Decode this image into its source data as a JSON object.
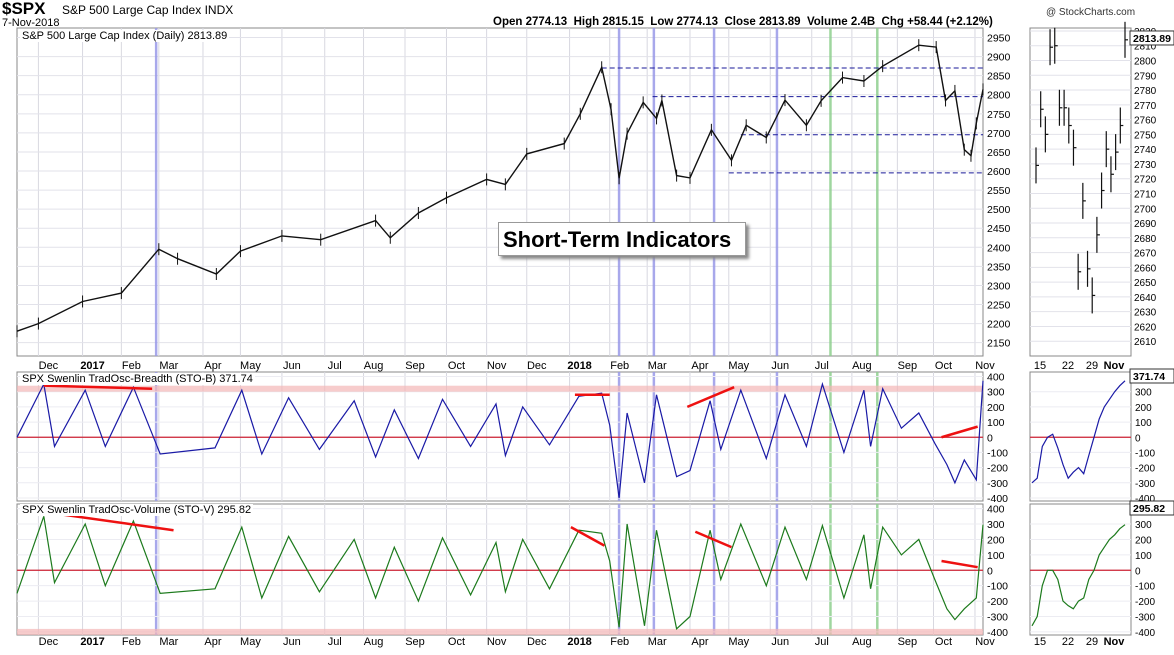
{
  "header": {
    "symbol": "$SPX",
    "name": "S&P 500 Large Cap Index",
    "exchange": "INDX",
    "date": "7-Nov-2018",
    "open_label": "Open",
    "open": "2774.13",
    "high_label": "High",
    "high": "2815.15",
    "low_label": "Low",
    "low": "2774.13",
    "close_label": "Close",
    "close": "2813.89",
    "volume_label": "Volume",
    "volume": "2.4B",
    "chg_label": "Chg",
    "chg": "+58.44 (+2.12%)",
    "copyright": "@ StockCharts.com"
  },
  "callout": "Short-Term Indicators",
  "chart_data": [
    {
      "type": "line",
      "panel": "price",
      "title": "S&P 500 Large Cap Index (Daily) 2813.89",
      "last_value_label": "2813.89",
      "y_ticks": [
        2150,
        2200,
        2250,
        2300,
        2350,
        2400,
        2450,
        2500,
        2550,
        2600,
        2650,
        2700,
        2750,
        2800,
        2850,
        2900,
        2950
      ],
      "ylim": [
        2115,
        2975
      ],
      "x_month_labels": [
        "Dec",
        "2017",
        "Feb",
        "Mar",
        "Apr",
        "May",
        "Jun",
        "Jul",
        "Aug",
        "Sep",
        "Oct",
        "Nov",
        "Dec",
        "2018",
        "Feb",
        "Mar",
        "Apr",
        "May",
        "Jun",
        "Jul",
        "Aug",
        "Sep",
        "Oct",
        "Nov"
      ],
      "x": [
        "2016-11-15",
        "2016-12-01",
        "2017-01-03",
        "2017-02-01",
        "2017-03-01",
        "2017-03-15",
        "2017-04-13",
        "2017-05-01",
        "2017-06-01",
        "2017-06-30",
        "2017-08-10",
        "2017-08-21",
        "2017-09-11",
        "2017-10-02",
        "2017-11-01",
        "2017-11-15",
        "2017-12-01",
        "2017-12-29",
        "2018-01-10",
        "2018-01-26",
        "2018-02-02",
        "2018-02-08",
        "2018-02-14",
        "2018-02-26",
        "2018-03-08",
        "2018-03-12",
        "2018-03-23",
        "2018-04-02",
        "2018-04-18",
        "2018-05-03",
        "2018-05-14",
        "2018-05-29",
        "2018-06-12",
        "2018-06-28",
        "2018-07-09",
        "2018-07-25",
        "2018-08-10",
        "2018-08-24",
        "2018-09-20",
        "2018-10-03",
        "2018-10-10",
        "2018-10-17",
        "2018-10-24",
        "2018-10-29",
        "2018-11-02",
        "2018-11-07"
      ],
      "values": [
        2180,
        2200,
        2258,
        2280,
        2395,
        2370,
        2330,
        2390,
        2430,
        2420,
        2470,
        2425,
        2490,
        2530,
        2578,
        2565,
        2645,
        2672,
        2750,
        2872,
        2762,
        2581,
        2698,
        2780,
        2738,
        2785,
        2588,
        2582,
        2708,
        2628,
        2720,
        2688,
        2786,
        2720,
        2784,
        2845,
        2836,
        2875,
        2930,
        2925,
        2785,
        2810,
        2656,
        2640,
        2725,
        2814
      ],
      "horizontal_levels": [
        {
          "value": 2870,
          "style": "dashed"
        },
        {
          "value": 2795,
          "style": "dashed"
        },
        {
          "value": 2695,
          "style": "dashed"
        },
        {
          "value": 2595,
          "style": "dashed"
        }
      ],
      "vertical_markers": [
        {
          "date": "2017-02-27",
          "color": "#9a9ae8"
        },
        {
          "date": "2018-02-08",
          "color": "#9a9ae8"
        },
        {
          "date": "2018-03-06",
          "color": "#9a9ae8"
        },
        {
          "date": "2018-04-20",
          "color": "#9a9ae8"
        },
        {
          "date": "2018-06-06",
          "color": "#9a9ae8"
        },
        {
          "date": "2018-07-16",
          "color": "#8fd08f"
        },
        {
          "date": "2018-08-20",
          "color": "#8fd08f"
        }
      ]
    },
    {
      "type": "line",
      "panel": "stob",
      "title": "SPX Swenlin TradOsc-Breadth (STO-B) 371.74",
      "last_value_label": "371.74",
      "color": "#1a1aa6",
      "ylim": [
        -420,
        430
      ],
      "y_ticks": [
        -400,
        -300,
        -200,
        -100,
        0,
        100,
        200,
        300,
        400
      ],
      "zero_line_color": "#cc2233",
      "overbought_band": 320,
      "x": [
        "2016-11-15",
        "2016-12-05",
        "2016-12-13",
        "2017-01-05",
        "2017-01-20",
        "2017-02-10",
        "2017-03-02",
        "2017-04-12",
        "2017-05-02",
        "2017-05-17",
        "2017-06-06",
        "2017-06-29",
        "2017-07-25",
        "2017-08-10",
        "2017-08-24",
        "2017-09-11",
        "2017-09-29",
        "2017-10-20",
        "2017-11-08",
        "2017-11-15",
        "2017-11-28",
        "2017-12-18",
        "2018-01-09",
        "2018-01-26",
        "2018-02-01",
        "2018-02-08",
        "2018-02-14",
        "2018-02-27",
        "2018-03-08",
        "2018-03-23",
        "2018-04-02",
        "2018-04-17",
        "2018-04-25",
        "2018-05-10",
        "2018-05-29",
        "2018-06-12",
        "2018-06-28",
        "2018-07-10",
        "2018-07-26",
        "2018-08-10",
        "2018-08-15",
        "2018-08-24",
        "2018-09-07",
        "2018-09-20",
        "2018-10-02",
        "2018-10-11",
        "2018-10-17",
        "2018-10-24",
        "2018-11-02",
        "2018-11-07"
      ],
      "values": [
        0,
        350,
        -60,
        310,
        -60,
        330,
        -110,
        -70,
        310,
        -110,
        260,
        -80,
        240,
        -130,
        180,
        -140,
        250,
        -60,
        220,
        -120,
        200,
        -50,
        270,
        290,
        80,
        -400,
        160,
        -300,
        280,
        -260,
        -220,
        240,
        -80,
        310,
        -140,
        280,
        -60,
        350,
        -100,
        310,
        -60,
        320,
        60,
        160,
        -40,
        -180,
        -300,
        -150,
        -280,
        372
      ]
    },
    {
      "type": "line",
      "panel": "stov",
      "title": "SPX Swenlin TradOsc-Volume (STO-V) 295.82",
      "last_value_label": "295.82",
      "color": "#1c7a1c",
      "ylim": [
        -420,
        430
      ],
      "y_ticks": [
        -400,
        -300,
        -200,
        -100,
        0,
        100,
        200,
        300,
        400
      ],
      "zero_line_color": "#cc2233",
      "oversold_band": -400,
      "x": [
        "2016-11-15",
        "2016-12-05",
        "2016-12-13",
        "2017-01-05",
        "2017-01-20",
        "2017-02-10",
        "2017-03-02",
        "2017-04-12",
        "2017-05-02",
        "2017-05-17",
        "2017-06-06",
        "2017-06-29",
        "2017-07-25",
        "2017-08-10",
        "2017-08-24",
        "2017-09-11",
        "2017-09-29",
        "2017-10-20",
        "2017-11-08",
        "2017-11-15",
        "2017-11-28",
        "2017-12-18",
        "2018-01-09",
        "2018-01-26",
        "2018-02-01",
        "2018-02-08",
        "2018-02-14",
        "2018-02-27",
        "2018-03-08",
        "2018-03-23",
        "2018-04-02",
        "2018-04-17",
        "2018-04-25",
        "2018-05-10",
        "2018-05-29",
        "2018-06-12",
        "2018-06-28",
        "2018-07-10",
        "2018-07-26",
        "2018-08-10",
        "2018-08-15",
        "2018-08-24",
        "2018-09-07",
        "2018-09-20",
        "2018-10-02",
        "2018-10-11",
        "2018-10-17",
        "2018-10-24",
        "2018-11-02",
        "2018-11-07"
      ],
      "values": [
        -150,
        350,
        -80,
        300,
        -100,
        320,
        -150,
        -120,
        280,
        -180,
        220,
        -140,
        200,
        -180,
        150,
        -200,
        210,
        -160,
        180,
        -140,
        200,
        -120,
        260,
        240,
        60,
        -370,
        300,
        -360,
        260,
        -380,
        -300,
        260,
        -60,
        300,
        -100,
        280,
        -60,
        290,
        -180,
        230,
        -120,
        280,
        100,
        200,
        -60,
        -250,
        -320,
        -250,
        -180,
        296
      ]
    },
    {
      "type": "line",
      "panel": "zoom",
      "y_ticks": [
        2610,
        2620,
        2630,
        2640,
        2650,
        2660,
        2670,
        2680,
        2690,
        2700,
        2710,
        2720,
        2730,
        2740,
        2750,
        2760,
        2770,
        2780,
        2790,
        2800,
        2810,
        2820
      ],
      "ylim": [
        2600,
        2822
      ],
      "x_labels": [
        "15",
        "22",
        "29",
        "Nov"
      ],
      "x": [
        "10-11",
        "10-12",
        "10-15",
        "10-16",
        "10-17",
        "10-18",
        "10-19",
        "10-22",
        "10-23",
        "10-24",
        "10-25",
        "10-26",
        "10-29",
        "10-30",
        "10-31",
        "11-01",
        "11-02",
        "11-05",
        "11-06",
        "11-07"
      ],
      "values": [
        2729,
        2767,
        2750,
        2809,
        2810,
        2768,
        2768,
        2756,
        2741,
        2657,
        2705,
        2659,
        2641,
        2682,
        2712,
        2740,
        2723,
        2738,
        2756,
        2814
      ]
    },
    {
      "type": "line",
      "panel": "zoom_stob",
      "color": "#1a1aa6",
      "ylim": [
        -420,
        430
      ],
      "y_ticks": [
        -400,
        -300,
        -200,
        -100,
        0,
        100,
        200,
        300
      ],
      "zero_line_color": "#cc2233",
      "x_labels": [
        "15",
        "22",
        "29",
        "Nov"
      ],
      "values": [
        -300,
        -270,
        -60,
        0,
        20,
        -70,
        -180,
        -270,
        -230,
        -200,
        -240,
        -120,
        0,
        120,
        200,
        250,
        300,
        340,
        372
      ]
    },
    {
      "type": "line",
      "panel": "zoom_stov",
      "color": "#1c7a1c",
      "ylim": [
        -420,
        430
      ],
      "y_ticks": [
        -400,
        -300,
        -200,
        -100,
        0,
        100,
        200,
        300
      ],
      "zero_line_color": "#cc2233",
      "x_labels": [
        "15",
        "22",
        "29",
        "Nov"
      ],
      "values": [
        -360,
        -300,
        -100,
        0,
        0,
        -60,
        -200,
        -230,
        -250,
        -200,
        -180,
        -60,
        0,
        100,
        150,
        200,
        230,
        270,
        296
      ]
    }
  ]
}
